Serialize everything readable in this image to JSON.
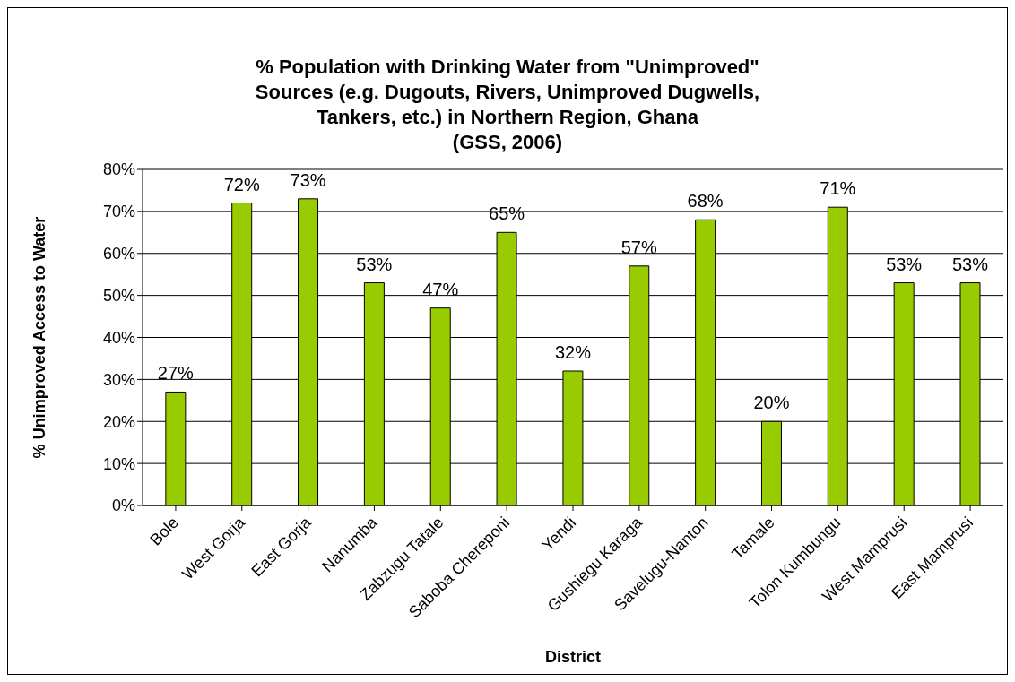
{
  "chart_data": {
    "type": "bar",
    "title": "% Population with Drinking Water from \"Unimproved\"\nSources (e.g. Dugouts, Rivers, Unimproved Dugwells,\nTankers, etc.) in Northern Region, Ghana\n(GSS, 2006)",
    "xlabel": "District",
    "ylabel": "% Unimproved Access to Water",
    "categories": [
      "Bole",
      "West Gorja",
      "East Gorja",
      "Nanumba",
      "Zabzugu Tatale",
      "Saboba Chereponi",
      "Yendi",
      "Gushiegu Karaga",
      "Savelugu-Nanton",
      "Tamale",
      "Tolon Kumbungu",
      "West Mamprusi",
      "East Mamprusi"
    ],
    "values": [
      27,
      72,
      73,
      53,
      47,
      65,
      32,
      57,
      68,
      20,
      71,
      53,
      53
    ],
    "value_labels": [
      "27%",
      "72%",
      "73%",
      "53%",
      "47%",
      "65%",
      "32%",
      "57%",
      "68%",
      "20%",
      "71%",
      "53%",
      "53%"
    ],
    "color": "#99cc00",
    "ylim": [
      0,
      80
    ],
    "yticks": [
      {
        "value": 0,
        "label": "0%"
      },
      {
        "value": 10,
        "label": "10%"
      },
      {
        "value": 20,
        "label": "20%"
      },
      {
        "value": 30,
        "label": "30%"
      },
      {
        "value": 40,
        "label": "40%"
      },
      {
        "value": 50,
        "label": "50%"
      },
      {
        "value": 60,
        "label": "60%"
      },
      {
        "value": 70,
        "label": "70%"
      },
      {
        "value": 80,
        "label": "80%"
      }
    ],
    "grid": "y",
    "legend": false
  }
}
